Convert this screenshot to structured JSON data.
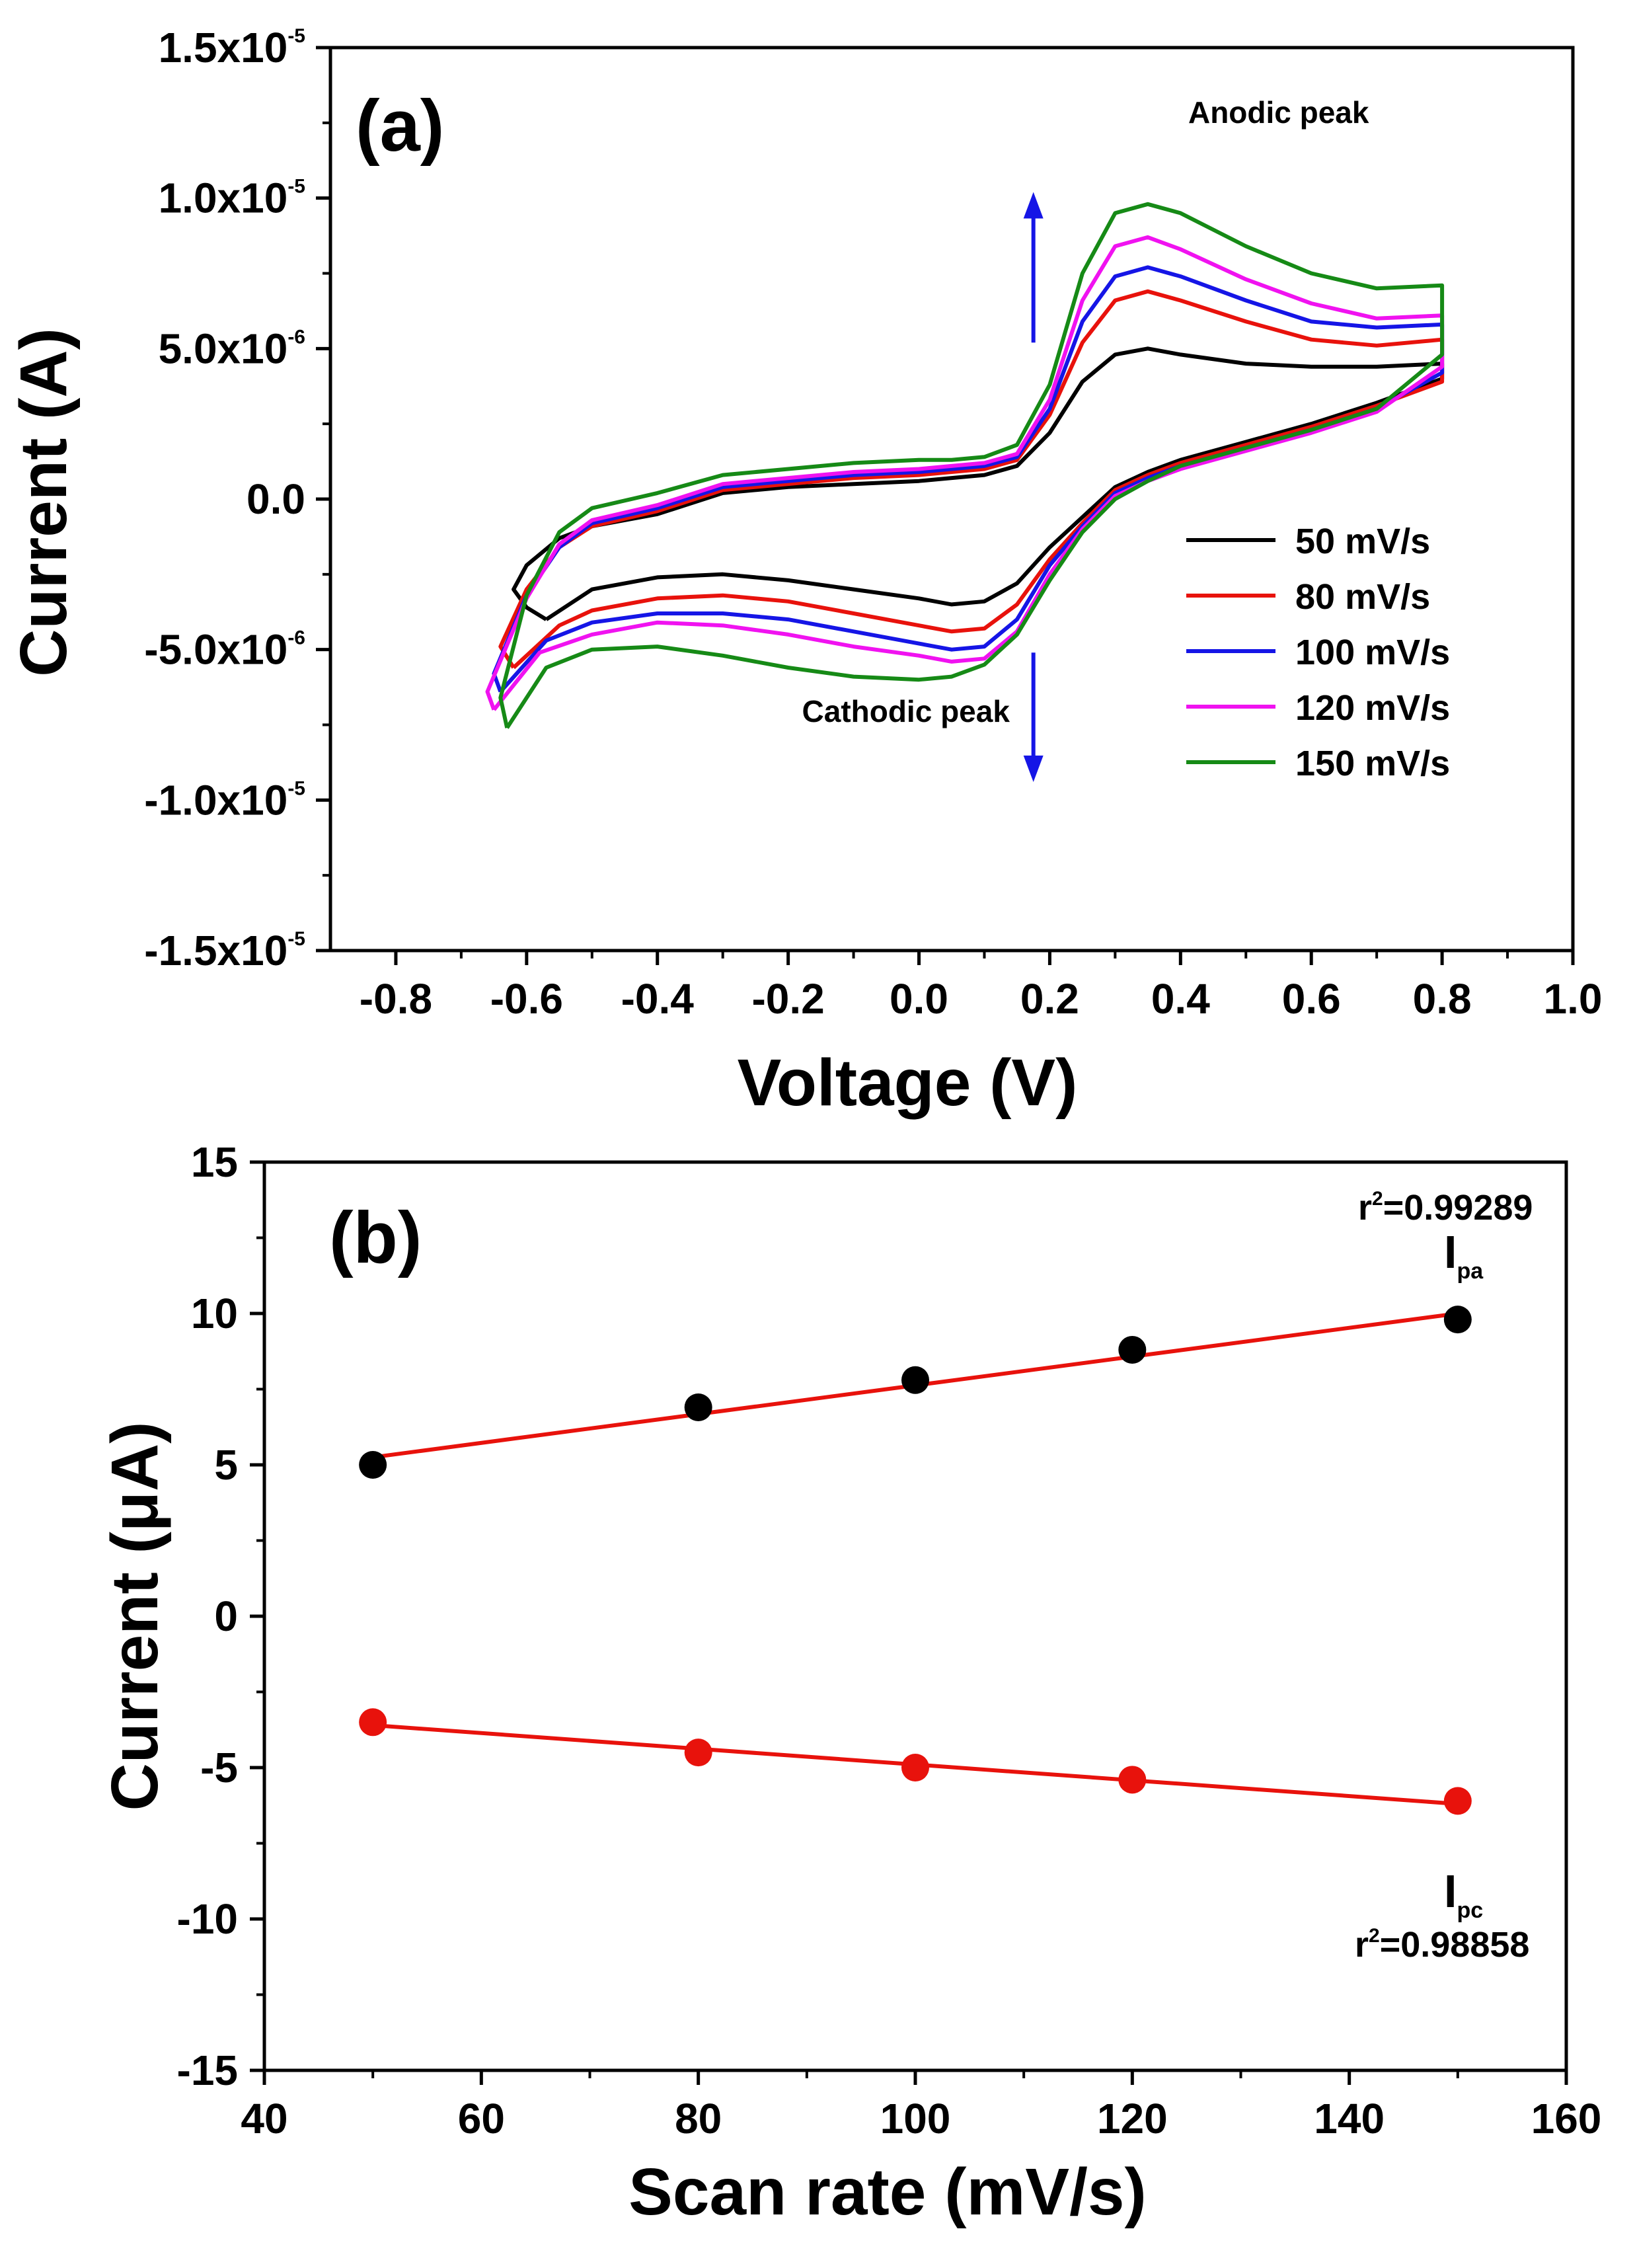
{
  "chart_data": [
    {
      "id": "a",
      "type": "line",
      "panel_label": "(a)",
      "xlabel": "Voltage (V)",
      "ylabel": "Current (A)",
      "xlim": [
        -0.9,
        1.0
      ],
      "ylim": [
        -1.5e-05,
        1.5e-05
      ],
      "x_ticks": [
        -0.8,
        -0.6,
        -0.4,
        -0.2,
        0.0,
        0.2,
        0.4,
        0.6,
        0.8,
        1.0
      ],
      "x_tick_labels": [
        "-0.8",
        "-0.6",
        "-0.4",
        "-0.2",
        "0.0",
        "0.2",
        "0.4",
        "0.6",
        "0.8",
        "1.0"
      ],
      "y_ticks": [
        {
          "value": 1.5e-05,
          "mant": "1.5x10",
          "exp": "-5"
        },
        {
          "value": 1e-05,
          "mant": "1.0x10",
          "exp": "-5"
        },
        {
          "value": 5e-06,
          "mant": "5.0x10",
          "exp": "-6"
        },
        {
          "value": 0.0,
          "mant": "0.0",
          "exp": ""
        },
        {
          "value": -5e-06,
          "mant": "-5.0x10",
          "exp": "-6"
        },
        {
          "value": -1e-05,
          "mant": "-1.0x10",
          "exp": "-5"
        },
        {
          "value": -1.5e-05,
          "mant": "-1.5x10",
          "exp": "-5"
        }
      ],
      "legend_position": "right-center",
      "annotations": [
        {
          "text": "Anodic peak",
          "x": 0.55,
          "y": 1.25e-05,
          "arrow": "up"
        },
        {
          "text": "Cathodic peak",
          "x": -0.02,
          "y": -7.4e-06,
          "arrow": "down"
        }
      ],
      "arrows": [
        {
          "x": 0.175,
          "from": 5.2e-06,
          "to": 1.02e-05,
          "color": "#1515e6"
        },
        {
          "x": 0.175,
          "from": -5.1e-06,
          "to": -9.4e-06,
          "color": "#1515e6"
        }
      ],
      "series": [
        {
          "name": "50 mV/s",
          "color": "#000000",
          "x": [
            -0.57,
            -0.5,
            -0.4,
            -0.3,
            -0.2,
            -0.1,
            0.0,
            0.05,
            0.1,
            0.15,
            0.2,
            0.25,
            0.3,
            0.35,
            0.4,
            0.5,
            0.6,
            0.7,
            0.8,
            0.8,
            0.7,
            0.6,
            0.5,
            0.4,
            0.35,
            0.3,
            0.25,
            0.2,
            0.15,
            0.1,
            0.05,
            0.0,
            -0.1,
            -0.2,
            -0.3,
            -0.4,
            -0.5,
            -0.55,
            -0.6,
            -0.62,
            -0.6,
            -0.57
          ],
          "y": [
            -4e-06,
            -3e-06,
            -2.6e-06,
            -2.5e-06,
            -2.7e-06,
            -3e-06,
            -3.3e-06,
            -3.5e-06,
            -3.4e-06,
            -2.8e-06,
            -1.6e-06,
            -6e-07,
            4e-07,
            9e-07,
            1.3e-06,
            1.9e-06,
            2.5e-06,
            3.2e-06,
            4e-06,
            4.5e-06,
            4.4e-06,
            4.4e-06,
            4.5e-06,
            4.8e-06,
            5e-06,
            4.8e-06,
            3.9e-06,
            2.2e-06,
            1.1e-06,
            8e-07,
            7e-07,
            6e-07,
            5e-07,
            4e-07,
            2e-07,
            -5e-07,
            -9e-07,
            -1.3e-06,
            -2.2e-06,
            -3e-06,
            -3.6e-06,
            -4e-06
          ]
        },
        {
          "name": "80 mV/s",
          "color": "#e8120c",
          "x": [
            -0.62,
            -0.55,
            -0.5,
            -0.4,
            -0.3,
            -0.2,
            -0.1,
            0.0,
            0.05,
            0.1,
            0.15,
            0.2,
            0.25,
            0.3,
            0.35,
            0.4,
            0.5,
            0.6,
            0.7,
            0.8,
            0.8,
            0.7,
            0.6,
            0.5,
            0.4,
            0.35,
            0.3,
            0.25,
            0.2,
            0.15,
            0.1,
            0.05,
            0.0,
            -0.1,
            -0.2,
            -0.3,
            -0.4,
            -0.5,
            -0.55,
            -0.6,
            -0.64,
            -0.62
          ],
          "y": [
            -5.6e-06,
            -4.2e-06,
            -3.7e-06,
            -3.3e-06,
            -3.2e-06,
            -3.4e-06,
            -3.8e-06,
            -4.2e-06,
            -4.4e-06,
            -4.3e-06,
            -3.5e-06,
            -2e-06,
            -8e-07,
            3e-07,
            8e-07,
            1.2e-06,
            1.8e-06,
            2.4e-06,
            3.1e-06,
            3.9e-06,
            5.3e-06,
            5.1e-06,
            5.3e-06,
            5.9e-06,
            6.6e-06,
            6.9e-06,
            6.6e-06,
            5.2e-06,
            2.8e-06,
            1.3e-06,
            1e-06,
            9e-07,
            8e-07,
            7e-07,
            5e-07,
            3e-07,
            -4e-07,
            -9e-07,
            -1.6e-06,
            -3e-06,
            -4.9e-06,
            -5.6e-06
          ]
        },
        {
          "name": "100 mV/s",
          "color": "#1515e6",
          "x": [
            -0.64,
            -0.57,
            -0.5,
            -0.4,
            -0.3,
            -0.2,
            -0.1,
            0.0,
            0.05,
            0.1,
            0.15,
            0.2,
            0.25,
            0.3,
            0.35,
            0.4,
            0.5,
            0.6,
            0.7,
            0.8,
            0.8,
            0.7,
            0.6,
            0.5,
            0.4,
            0.35,
            0.3,
            0.25,
            0.2,
            0.15,
            0.1,
            0.05,
            0.0,
            -0.1,
            -0.2,
            -0.3,
            -0.4,
            -0.5,
            -0.55,
            -0.6,
            -0.65,
            -0.64
          ],
          "y": [
            -6.4e-06,
            -4.7e-06,
            -4.1e-06,
            -3.8e-06,
            -3.8e-06,
            -4e-06,
            -4.4e-06,
            -4.8e-06,
            -5e-06,
            -4.9e-06,
            -4e-06,
            -2.2e-06,
            -9e-07,
            2e-07,
            7e-07,
            1.1e-06,
            1.7e-06,
            2.3e-06,
            3e-06,
            4.2e-06,
            5.8e-06,
            5.7e-06,
            5.9e-06,
            6.6e-06,
            7.4e-06,
            7.7e-06,
            7.4e-06,
            5.9e-06,
            3e-06,
            1.4e-06,
            1.1e-06,
            1e-06,
            9e-07,
            8e-07,
            6e-07,
            4e-07,
            -3e-07,
            -8e-07,
            -1.6e-06,
            -3.2e-06,
            -5.8e-06,
            -6.4e-06
          ]
        },
        {
          "name": "120 mV/s",
          "color": "#f012f0",
          "x": [
            -0.65,
            -0.58,
            -0.5,
            -0.4,
            -0.3,
            -0.2,
            -0.1,
            0.0,
            0.05,
            0.1,
            0.15,
            0.2,
            0.25,
            0.3,
            0.35,
            0.4,
            0.5,
            0.6,
            0.7,
            0.8,
            0.8,
            0.7,
            0.6,
            0.5,
            0.4,
            0.35,
            0.3,
            0.25,
            0.2,
            0.15,
            0.1,
            0.05,
            0.0,
            -0.1,
            -0.2,
            -0.3,
            -0.4,
            -0.5,
            -0.55,
            -0.6,
            -0.66,
            -0.65
          ],
          "y": [
            -7e-06,
            -5.1e-06,
            -4.5e-06,
            -4.1e-06,
            -4.2e-06,
            -4.5e-06,
            -4.9e-06,
            -5.2e-06,
            -5.4e-06,
            -5.3e-06,
            -4.4e-06,
            -2.5e-06,
            -1e-06,
            1e-07,
            6e-07,
            1e-06,
            1.6e-06,
            2.2e-06,
            2.9e-06,
            4.4e-06,
            6.1e-06,
            6e-06,
            6.5e-06,
            7.3e-06,
            8.3e-06,
            8.7e-06,
            8.4e-06,
            6.6e-06,
            3.3e-06,
            1.5e-06,
            1.2e-06,
            1.1e-06,
            1e-06,
            9e-07,
            7e-07,
            5e-07,
            -2e-07,
            -7e-07,
            -1.5e-06,
            -3.3e-06,
            -6.4e-06,
            -7e-06
          ]
        },
        {
          "name": "150 mV/s",
          "color": "#168a16",
          "x": [
            -0.63,
            -0.57,
            -0.5,
            -0.4,
            -0.3,
            -0.2,
            -0.1,
            0.0,
            0.05,
            0.1,
            0.15,
            0.2,
            0.25,
            0.3,
            0.35,
            0.4,
            0.5,
            0.6,
            0.7,
            0.8,
            0.8,
            0.7,
            0.6,
            0.5,
            0.4,
            0.35,
            0.3,
            0.25,
            0.2,
            0.15,
            0.1,
            0.05,
            0.0,
            -0.1,
            -0.2,
            -0.3,
            -0.4,
            -0.5,
            -0.55,
            -0.6,
            -0.64,
            -0.63
          ],
          "y": [
            -7.6e-06,
            -5.6e-06,
            -5e-06,
            -4.9e-06,
            -5.2e-06,
            -5.6e-06,
            -5.9e-06,
            -6e-06,
            -5.9e-06,
            -5.5e-06,
            -4.5e-06,
            -2.7e-06,
            -1.1e-06,
            0.0,
            6e-07,
            1.1e-06,
            1.7e-06,
            2.3e-06,
            3e-06,
            4.8e-06,
            7.1e-06,
            7e-06,
            7.5e-06,
            8.4e-06,
            9.5e-06,
            9.8e-06,
            9.5e-06,
            7.5e-06,
            3.8e-06,
            1.8e-06,
            1.4e-06,
            1.3e-06,
            1.3e-06,
            1.2e-06,
            1e-06,
            8e-07,
            2e-07,
            -3e-07,
            -1.1e-06,
            -3.2e-06,
            -6.6e-06,
            -7.6e-06
          ]
        }
      ]
    },
    {
      "id": "b",
      "type": "scatter",
      "panel_label": "(b)",
      "xlabel": "Scan rate (mV/s)",
      "ylabel": "Current (μA)",
      "xlim": [
        40,
        160
      ],
      "ylim": [
        -15,
        15
      ],
      "x_ticks": [
        40,
        60,
        80,
        100,
        120,
        140,
        160
      ],
      "x_tick_labels": [
        "40",
        "60",
        "80",
        "100",
        "120",
        "140",
        "160"
      ],
      "y_ticks": [
        15,
        10,
        5,
        0,
        -5,
        -10,
        -15
      ],
      "y_tick_labels": [
        "15",
        "10",
        "5",
        "0",
        "-5",
        "-10",
        "-15"
      ],
      "series": [
        {
          "name": "Ipa",
          "label_main": "I",
          "label_sub": "pa",
          "r2_prefix": "r",
          "r2_value": "=0.99289",
          "point_color": "#000000",
          "fit_color": "#e8120c",
          "x": [
            50,
            80,
            100,
            120,
            150
          ],
          "y": [
            5.0,
            6.9,
            7.8,
            8.8,
            9.8
          ],
          "fit": {
            "x": [
              50,
              150
            ],
            "y": [
              5.25,
              10.0
            ]
          }
        },
        {
          "name": "Ipc",
          "label_main": "I",
          "label_sub": "pc",
          "r2_prefix": "r",
          "r2_value": "=0.98858",
          "point_color": "#e8120c",
          "fit_color": "#e8120c",
          "x": [
            50,
            80,
            100,
            120,
            150
          ],
          "y": [
            -3.5,
            -4.5,
            -5.0,
            -5.4,
            -6.1
          ],
          "fit": {
            "x": [
              50,
              150
            ],
            "y": [
              -3.6,
              -6.2
            ]
          }
        }
      ]
    }
  ]
}
